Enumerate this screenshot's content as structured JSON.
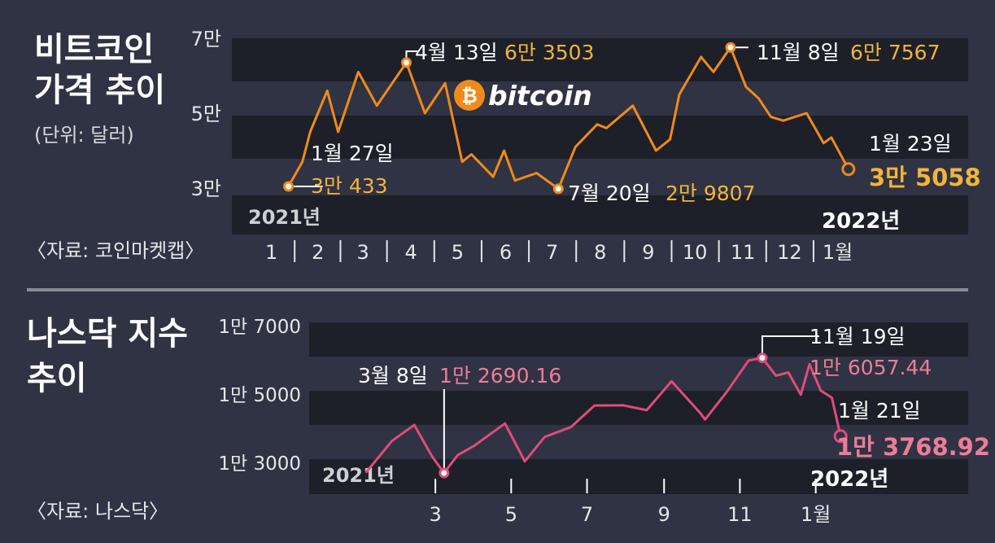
{
  "colors": {
    "background": "#2f3343",
    "band_dark": "#1d1f29",
    "bitcoin_line": "#ef8a1c",
    "bitcoin_label": "#f2b43c",
    "nasdaq_line": "#e04c7a",
    "nasdaq_label": "#ec7d98",
    "text": "#ffffff",
    "divider": "#8a8c94"
  },
  "bitcoin": {
    "title_line1": "비트코인",
    "title_line2": "가격 추이",
    "unit": "(단위: 달러)",
    "source": "〈자료: 코인마켓캡〉",
    "logo": "bitcoin",
    "logo_icon": "bitcoin-icon"
  },
  "nasdaq": {
    "title_line1": "나스닥 지수",
    "title_line2": "추이",
    "source": "〈자료: 나스닥〉"
  },
  "chart_data": [
    {
      "type": "line",
      "title": "비트코인 가격 추이",
      "unit": "(단위: 달러)",
      "ylim": [
        30000,
        70000
      ],
      "y_ticks": [
        {
          "value": 70000,
          "label": "7만"
        },
        {
          "value": 50000,
          "label": "5만"
        },
        {
          "value": 30000,
          "label": "3만"
        }
      ],
      "x_ticks": [
        "1",
        "2",
        "3",
        "4",
        "5",
        "6",
        "7",
        "8",
        "9",
        "10",
        "11",
        "12",
        "1월"
      ],
      "year_labels": {
        "start": "2021년",
        "end": "2022년"
      },
      "series": [
        {
          "color": "#ef8a1c",
          "points": [
            [
              "2021-01-27",
              30433
            ],
            [
              "2021-02-05",
              37000
            ],
            [
              "2021-02-10",
              45000
            ],
            [
              "2021-02-21",
              56000
            ],
            [
              "2021-02-28",
              45000
            ],
            [
              "2021-03-13",
              61000
            ],
            [
              "2021-03-25",
              52000
            ],
            [
              "2021-04-13",
              63503
            ],
            [
              "2021-04-25",
              50000
            ],
            [
              "2021-05-08",
              58000
            ],
            [
              "2021-05-19",
              37000
            ],
            [
              "2021-05-25",
              39000
            ],
            [
              "2021-06-08",
              33000
            ],
            [
              "2021-06-15",
              40000
            ],
            [
              "2021-06-22",
              32000
            ],
            [
              "2021-07-06",
              34000
            ],
            [
              "2021-07-20",
              29807
            ],
            [
              "2021-07-31",
              41000
            ],
            [
              "2021-08-14",
              47000
            ],
            [
              "2021-08-20",
              46000
            ],
            [
              "2021-09-06",
              52000
            ],
            [
              "2021-09-21",
              40000
            ],
            [
              "2021-09-30",
              43000
            ],
            [
              "2021-10-06",
              55000
            ],
            [
              "2021-10-20",
              65000
            ],
            [
              "2021-10-28",
              61000
            ],
            [
              "2021-11-08",
              67567
            ],
            [
              "2021-11-18",
              57000
            ],
            [
              "2021-11-26",
              54000
            ],
            [
              "2021-12-04",
              49000
            ],
            [
              "2021-12-12",
              48000
            ],
            [
              "2021-12-27",
              50000
            ],
            [
              "2022-01-07",
              42000
            ],
            [
              "2022-01-12",
              43500
            ],
            [
              "2022-01-23",
              35058
            ]
          ]
        }
      ],
      "annotations": [
        {
          "date": "2021-01-27",
          "value": 30433,
          "date_label": "1월 27일",
          "value_label": "3만 433"
        },
        {
          "date": "2021-04-13",
          "value": 63503,
          "date_label": "4월 13일",
          "value_label": "6만 3503"
        },
        {
          "date": "2021-07-20",
          "value": 29807,
          "date_label": "7월 20일",
          "value_label": "2만 9807"
        },
        {
          "date": "2021-11-08",
          "value": 67567,
          "date_label": "11월 8일",
          "value_label": "6만 7567"
        },
        {
          "date": "2022-01-23",
          "value": 35058,
          "date_label": "1월 23일",
          "value_label": "3만 5058"
        }
      ],
      "source": "〈자료: 코인마켓캡〉"
    },
    {
      "type": "line",
      "title": "나스닥 지수 추이",
      "ylim": [
        12000,
        18000
      ],
      "y_ticks": [
        {
          "value": 17000,
          "label": "1만 7000"
        },
        {
          "value": 15000,
          "label": "1만 5000"
        },
        {
          "value": 13000,
          "label": "1만 3000"
        }
      ],
      "x_ticks": [
        "3",
        "5",
        "7",
        "9",
        "11",
        "1월"
      ],
      "year_labels": {
        "start": "2021년",
        "end": "2022년"
      },
      "series": [
        {
          "color": "#e04c7a",
          "points": [
            [
              "2021-01-04",
              12698
            ],
            [
              "2021-01-25",
              13626
            ],
            [
              "2021-02-12",
              14095
            ],
            [
              "2021-02-26",
              13192
            ],
            [
              "2021-03-08",
              12690
            ],
            [
              "2021-03-19",
              13215
            ],
            [
              "2021-04-01",
              13480
            ],
            [
              "2021-04-26",
              14138
            ],
            [
              "2021-05-12",
              13031
            ],
            [
              "2021-05-28",
              13748
            ],
            [
              "2021-06-18",
              14030
            ],
            [
              "2021-07-07",
              14665
            ],
            [
              "2021-07-30",
              14672
            ],
            [
              "2021-08-18",
              14525
            ],
            [
              "2021-09-07",
              15374
            ],
            [
              "2021-09-30",
              14448
            ],
            [
              "2021-10-04",
              14255
            ],
            [
              "2021-10-22",
              15090
            ],
            [
              "2021-11-08",
              15982
            ],
            [
              "2021-11-19",
              16057
            ],
            [
              "2021-11-30",
              15537
            ],
            [
              "2021-12-10",
              15630
            ],
            [
              "2021-12-20",
              14980
            ],
            [
              "2021-12-27",
              15871
            ],
            [
              "2022-01-05",
              15100
            ],
            [
              "2022-01-14",
              14894
            ],
            [
              "2022-01-21",
              13769
            ]
          ]
        }
      ],
      "annotations": [
        {
          "date": "2021-03-08",
          "value": 12690.16,
          "date_label": "3월 8일",
          "value_label": "1만 2690.16"
        },
        {
          "date": "2021-11-19",
          "value": 16057.44,
          "date_label": "11월 19일",
          "value_label": "1만 6057.44"
        },
        {
          "date": "2022-01-21",
          "value": 13768.92,
          "date_label": "1월 21일",
          "value_label": "1만 3768.92"
        }
      ],
      "source": "〈자료: 나스닥〉"
    }
  ]
}
